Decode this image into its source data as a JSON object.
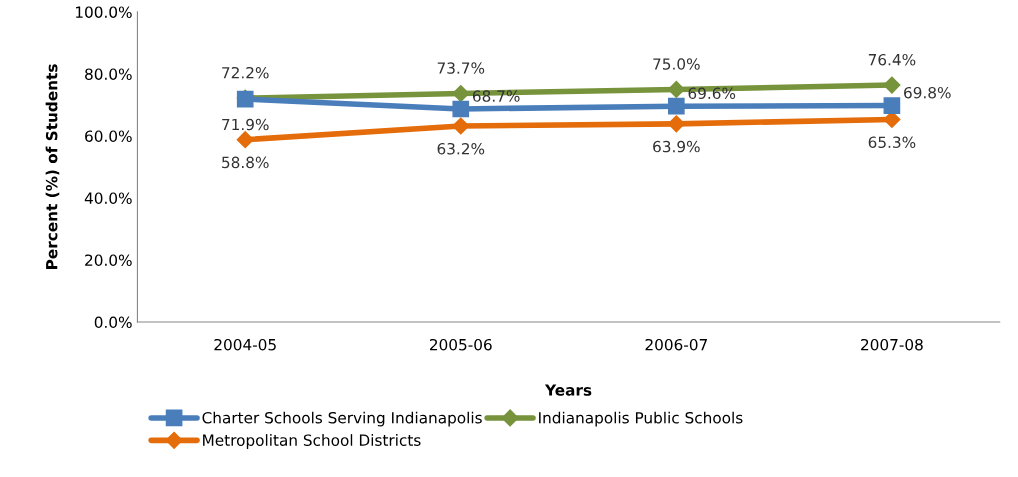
{
  "chart_data": {
    "type": "line",
    "xlabel": "Years",
    "ylabel": "Percent (%) of Students",
    "categories": [
      "2004-05",
      "2005-06",
      "2006-07",
      "2007-08"
    ],
    "series": [
      {
        "name": "Charter Schools Serving Indianapolis",
        "color": "#4a7ebb",
        "marker": "square",
        "values": [
          71.9,
          68.7,
          69.6,
          69.8
        ],
        "value_labels": [
          "71.9%",
          "68.7%",
          "69.6%",
          "69.8%"
        ]
      },
      {
        "name": "Indianapolis Public Schools",
        "color": "#77933c",
        "marker": "diamond",
        "values": [
          72.2,
          73.7,
          75.0,
          76.4
        ],
        "value_labels": [
          "72.2%",
          "73.7%",
          "75.0%",
          "76.4%"
        ]
      },
      {
        "name": "Metropolitan School Districts",
        "color": "#e46c0a",
        "marker": "diamond",
        "values": [
          58.8,
          63.2,
          63.9,
          65.3
        ],
        "value_labels": [
          "58.8%",
          "63.2%",
          "63.9%",
          "65.3%"
        ]
      }
    ],
    "ylim": [
      0,
      100
    ],
    "yticks": [
      {
        "value": 0,
        "label": "0.0%"
      },
      {
        "value": 20,
        "label": "20.0%"
      },
      {
        "value": 40,
        "label": "40.0%"
      },
      {
        "value": 60,
        "label": "60.0%"
      },
      {
        "value": 80,
        "label": "80.0%"
      },
      {
        "value": 100,
        "label": "100.0%"
      }
    ],
    "grid": false,
    "legend": "bottom",
    "line_style": "solid"
  }
}
